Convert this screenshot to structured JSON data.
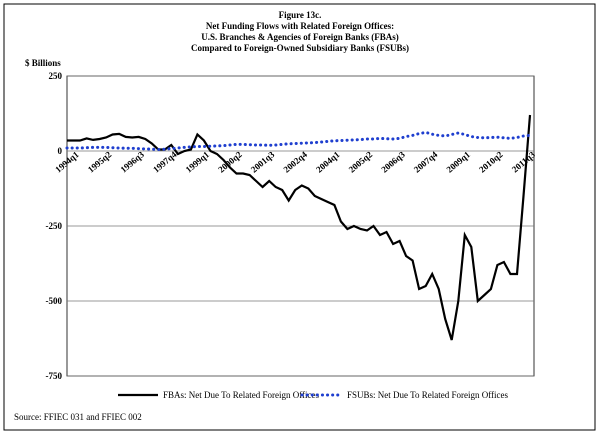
{
  "chart_data": {
    "type": "line",
    "title": "Figure 13c.",
    "subtitle": [
      "Net Funding Flows with Related Foreign Offices:",
      "U.S. Branches & Agencies of Foreign Banks (FBAs)",
      "Compared to Foreign-Owned Subsidiary Banks (FSUBs)"
    ],
    "y_label": "$ Billions",
    "source": "Source: FFIEC 031 and FFIEC 002",
    "categories": [
      "1994q1",
      null,
      null,
      null,
      null,
      "1995q2",
      null,
      null,
      null,
      null,
      "1996q3",
      null,
      null,
      null,
      null,
      "1997q4",
      null,
      null,
      null,
      null,
      "1999q1",
      null,
      null,
      null,
      null,
      "2000q2",
      null,
      null,
      null,
      null,
      "2001q3",
      null,
      null,
      null,
      null,
      "2002q4",
      null,
      null,
      null,
      null,
      "2004q1",
      null,
      null,
      null,
      null,
      "2005q2",
      null,
      null,
      null,
      null,
      "2006q3",
      null,
      null,
      null,
      null,
      "2007q4",
      null,
      null,
      null,
      null,
      "2009q1",
      null,
      null,
      null,
      null,
      "2010q2",
      null,
      null,
      null,
      null,
      "2011q3",
      null
    ],
    "series": [
      {
        "name": "FBAs: Net Due To Related Foreign Offices",
        "color": "#000000",
        "dash": false,
        "values": [
          35,
          35,
          35,
          42,
          37,
          40,
          45,
          55,
          57,
          47,
          45,
          47,
          40,
          25,
          5,
          5,
          20,
          -10,
          0,
          5,
          55,
          35,
          0,
          -10,
          -30,
          -55,
          -75,
          -75,
          -80,
          -100,
          -120,
          -100,
          -120,
          -130,
          -165,
          -130,
          -115,
          -125,
          -150,
          -160,
          -170,
          -180,
          -235,
          -260,
          -250,
          -260,
          -265,
          -250,
          -280,
          -270,
          -310,
          -300,
          -350,
          -365,
          -460,
          -450,
          -410,
          -460,
          -560,
          -630,
          -500,
          -280,
          -320,
          -500,
          -480,
          -460,
          -380,
          -370,
          -410,
          -410,
          -150,
          120
        ]
      },
      {
        "name": "FSUBs: Net Due To Related Foreign Offices",
        "color": "#1f3fcf",
        "dash": true,
        "values": [
          10,
          10,
          10,
          11,
          12,
          12,
          12,
          11,
          10,
          9,
          9,
          8,
          7,
          6,
          5,
          6,
          8,
          10,
          12,
          14,
          15,
          15,
          16,
          17,
          18,
          20,
          22,
          22,
          21,
          20,
          20,
          19,
          20,
          22,
          24,
          25,
          26,
          27,
          28,
          30,
          32,
          34,
          35,
          36,
          37,
          38,
          40,
          40,
          42,
          41,
          40,
          42,
          48,
          52,
          58,
          62,
          56,
          52,
          50,
          55,
          60,
          55,
          48,
          45,
          44,
          45,
          46,
          44,
          42,
          45,
          50,
          52
        ]
      }
    ],
    "ylim": [
      -750,
      250
    ],
    "yticks": [
      -750,
      -500,
      -250,
      0,
      250
    ],
    "grid": true
  }
}
